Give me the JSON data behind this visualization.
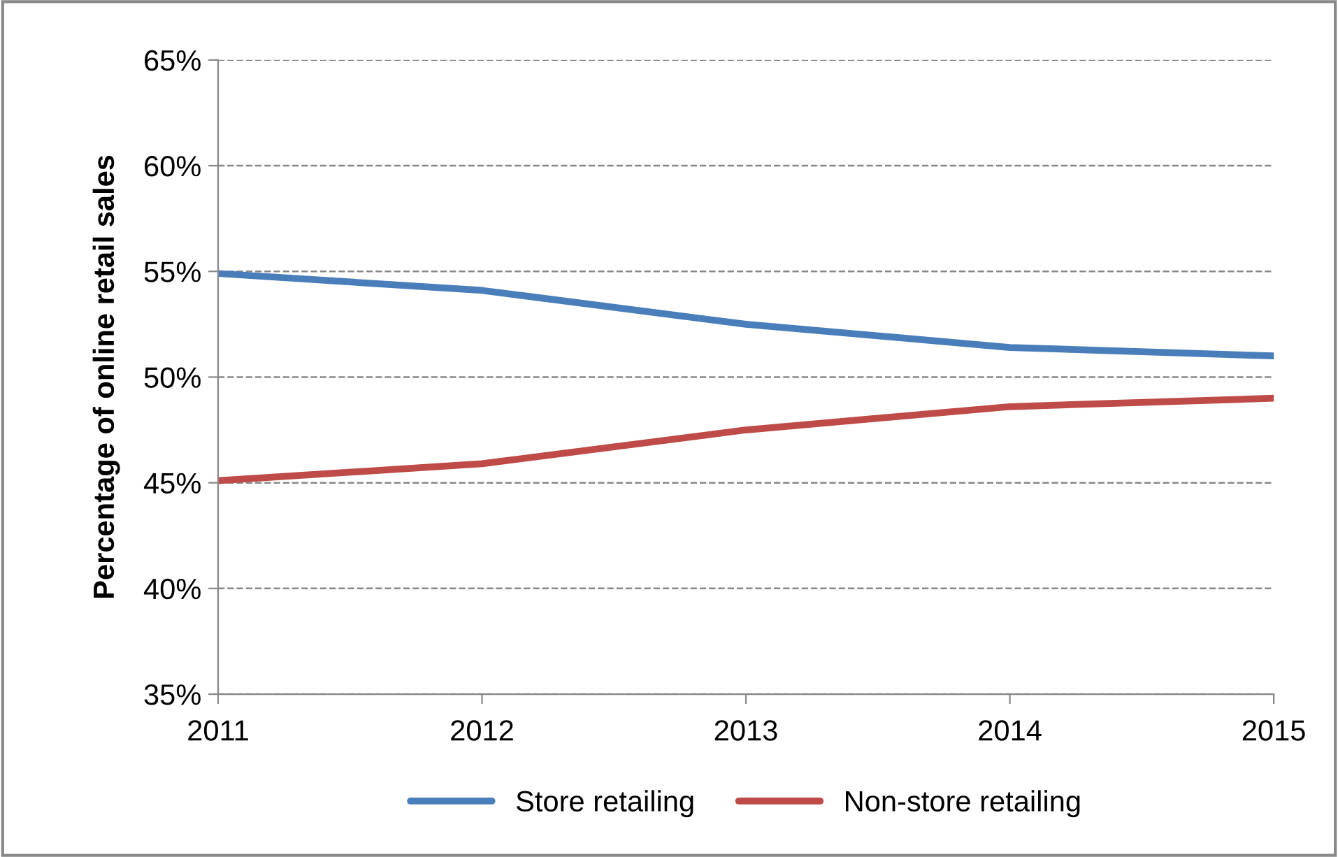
{
  "chart_data": {
    "type": "line",
    "ylabel": "Percentage of online retail sales",
    "x": [
      2011,
      2012,
      2013,
      2014,
      2015
    ],
    "series": [
      {
        "name": "Store retailing",
        "color": "#4a7ebb",
        "values": [
          54.9,
          54.1,
          52.5,
          51.4,
          51.0
        ]
      },
      {
        "name": "Non-store retailing",
        "color": "#be4b48",
        "values": [
          45.1,
          45.9,
          47.5,
          48.6,
          49.0
        ]
      }
    ],
    "xlim": [
      2011,
      2015
    ],
    "xticks": [
      2011,
      2012,
      2013,
      2014,
      2015
    ],
    "ylim": [
      35,
      65
    ],
    "yticks": [
      {
        "value": 35,
        "label": "35%"
      },
      {
        "value": 40,
        "label": "40%"
      },
      {
        "value": 45,
        "label": "45%"
      },
      {
        "value": 50,
        "label": "50%"
      },
      {
        "value": 55,
        "label": "55%"
      },
      {
        "value": 60,
        "label": "60%"
      },
      {
        "value": 65,
        "label": "65%"
      }
    ],
    "grid": "y",
    "legend": "bottom",
    "marker": "none",
    "line_style": "solid"
  }
}
